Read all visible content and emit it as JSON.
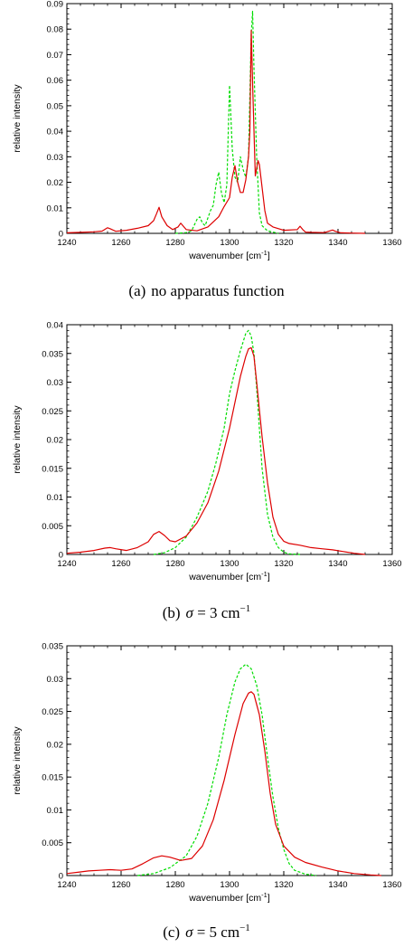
{
  "common": {
    "xlabel_main": "wavenumber [cm",
    "xlabel_sup": "-1",
    "xlabel_end": "]",
    "ylabel": "relative intensity"
  },
  "captions": [
    {
      "label": "(a)",
      "text": "no apparatus function"
    },
    {
      "label": "(b)",
      "sigma": "σ",
      "text": " = 3 cm",
      "sup": "−1"
    },
    {
      "label": "(c)",
      "sigma": "σ",
      "text": " = 5 cm",
      "sup": "−1"
    }
  ],
  "colors": {
    "red": "#dd0000",
    "green": "#00dd00"
  },
  "chart_data": [
    {
      "type": "line",
      "xlabel": "wavenumber [cm-1]",
      "ylabel": "relative intensity",
      "xlim": [
        1240,
        1360
      ],
      "ylim": [
        0,
        0.09
      ],
      "xticks": [
        1240,
        1260,
        1280,
        1300,
        1320,
        1340,
        1360
      ],
      "yticks": [
        0,
        0.01,
        0.02,
        0.03,
        0.04,
        0.05,
        0.06,
        0.07,
        0.08,
        0.09
      ],
      "ytick_labels": [
        "0",
        "0.01",
        "0.02",
        "0.03",
        "0.04",
        "0.05",
        "0.06",
        "0.07",
        "0.08",
        "0.09"
      ],
      "series": [
        {
          "color": "red",
          "style": "solid",
          "x": [
            1240,
            1245,
            1250,
            1253,
            1255,
            1256,
            1258,
            1262,
            1266,
            1270,
            1272,
            1273,
            1274,
            1275,
            1277,
            1279,
            1281,
            1282,
            1284,
            1288,
            1292,
            1296,
            1298,
            1300,
            1301,
            1302,
            1303,
            1304,
            1305,
            1306,
            1307,
            1307.5,
            1308,
            1308.6,
            1309.5,
            1310.5,
            1311,
            1312,
            1313,
            1314,
            1316,
            1320,
            1325,
            1326,
            1327,
            1328,
            1330,
            1335,
            1338,
            1339,
            1341,
            1345,
            1350
          ],
          "y": [
            0.0002,
            0.0004,
            0.0006,
            0.0009,
            0.0022,
            0.0018,
            0.0008,
            0.0012,
            0.002,
            0.003,
            0.005,
            0.0075,
            0.0102,
            0.0065,
            0.003,
            0.0015,
            0.0025,
            0.004,
            0.0015,
            0.001,
            0.0025,
            0.0065,
            0.0105,
            0.014,
            0.022,
            0.0265,
            0.02,
            0.016,
            0.016,
            0.021,
            0.03,
            0.04,
            0.0795,
            0.055,
            0.0225,
            0.0285,
            0.027,
            0.018,
            0.009,
            0.004,
            0.0025,
            0.0012,
            0.0015,
            0.0028,
            0.0015,
            0.0005,
            0.0004,
            0.0003,
            0.0013,
            0.0008,
            0.0002,
            0.0001,
            0.0
          ]
        },
        {
          "color": "green",
          "style": "dashed",
          "x": [
            1280,
            1284,
            1286,
            1288,
            1289,
            1290,
            1291,
            1292,
            1293,
            1294,
            1295,
            1296,
            1297,
            1298,
            1299,
            1300,
            1301,
            1302,
            1303,
            1304,
            1305,
            1306,
            1307,
            1308,
            1308.5,
            1309,
            1310,
            1311,
            1312,
            1314,
            1318
          ],
          "y": [
            0.0,
            0.0003,
            0.001,
            0.0055,
            0.0065,
            0.004,
            0.003,
            0.006,
            0.009,
            0.011,
            0.019,
            0.024,
            0.016,
            0.012,
            0.019,
            0.058,
            0.033,
            0.022,
            0.02,
            0.03,
            0.025,
            0.022,
            0.03,
            0.078,
            0.087,
            0.065,
            0.03,
            0.008,
            0.003,
            0.001,
            0.0
          ]
        }
      ]
    },
    {
      "type": "line",
      "xlabel": "wavenumber [cm-1]",
      "ylabel": "relative intensity",
      "xlim": [
        1240,
        1360
      ],
      "ylim": [
        0,
        0.04
      ],
      "xticks": [
        1240,
        1260,
        1280,
        1300,
        1320,
        1340,
        1360
      ],
      "yticks": [
        0,
        0.005,
        0.01,
        0.015,
        0.02,
        0.025,
        0.03,
        0.035,
        0.04
      ],
      "ytick_labels": [
        "0",
        "0.005",
        "0.01",
        "0.015",
        "0.02",
        "0.025",
        "0.03",
        "0.035",
        "0.04"
      ],
      "series": [
        {
          "color": "red",
          "style": "solid",
          "x": [
            1240,
            1245,
            1250,
            1254,
            1256,
            1258,
            1262,
            1266,
            1270,
            1272,
            1274,
            1276,
            1278,
            1280,
            1284,
            1288,
            1292,
            1296,
            1300,
            1302,
            1304,
            1306,
            1307,
            1308,
            1309,
            1310,
            1312,
            1314,
            1316,
            1318,
            1320,
            1322,
            1326,
            1330,
            1334,
            1338,
            1342,
            1346,
            1350
          ],
          "y": [
            0.0002,
            0.0004,
            0.0007,
            0.0011,
            0.0012,
            0.001,
            0.0007,
            0.0012,
            0.0022,
            0.0035,
            0.004,
            0.0033,
            0.0024,
            0.0022,
            0.0032,
            0.0055,
            0.009,
            0.0145,
            0.022,
            0.0265,
            0.031,
            0.0345,
            0.0358,
            0.036,
            0.0345,
            0.03,
            0.0205,
            0.0125,
            0.0065,
            0.0035,
            0.0023,
            0.0019,
            0.0016,
            0.0012,
            0.001,
            0.0008,
            0.0005,
            0.0002,
            0.0
          ]
        },
        {
          "color": "green",
          "style": "dashed",
          "x": [
            1272,
            1276,
            1280,
            1284,
            1288,
            1292,
            1295,
            1298,
            1300,
            1302,
            1304,
            1305,
            1306,
            1307,
            1308,
            1309,
            1310,
            1311,
            1312,
            1314,
            1316,
            1318,
            1320,
            1322,
            1326
          ],
          "y": [
            0.0,
            0.0003,
            0.0012,
            0.003,
            0.0065,
            0.011,
            0.016,
            0.022,
            0.028,
            0.032,
            0.0355,
            0.037,
            0.0385,
            0.039,
            0.038,
            0.035,
            0.029,
            0.022,
            0.015,
            0.007,
            0.003,
            0.0012,
            0.0004,
            0.0001,
            0.0
          ]
        }
      ]
    },
    {
      "type": "line",
      "xlabel": "wavenumber [cm-1]",
      "ylabel": "relative intensity",
      "xlim": [
        1240,
        1360
      ],
      "ylim": [
        0,
        0.035
      ],
      "xticks": [
        1240,
        1260,
        1280,
        1300,
        1320,
        1340,
        1360
      ],
      "yticks": [
        0,
        0.005,
        0.01,
        0.015,
        0.02,
        0.025,
        0.03,
        0.035
      ],
      "ytick_labels": [
        "0",
        "0.005",
        "0.01",
        "0.015",
        "0.02",
        "0.025",
        "0.03",
        "0.035"
      ],
      "series": [
        {
          "color": "red",
          "style": "solid",
          "x": [
            1240,
            1244,
            1248,
            1252,
            1256,
            1260,
            1264,
            1268,
            1272,
            1275,
            1278,
            1282,
            1286,
            1290,
            1294,
            1298,
            1302,
            1305,
            1307,
            1308,
            1309,
            1311,
            1313,
            1315,
            1317,
            1320,
            1324,
            1328,
            1334,
            1340,
            1346,
            1352,
            1356
          ],
          "y": [
            0.0003,
            0.0005,
            0.0007,
            0.0008,
            0.0009,
            0.0008,
            0.001,
            0.0018,
            0.0027,
            0.003,
            0.0028,
            0.0023,
            0.0026,
            0.0045,
            0.0085,
            0.0145,
            0.0215,
            0.0262,
            0.0278,
            0.028,
            0.0276,
            0.0245,
            0.019,
            0.0125,
            0.0078,
            0.0045,
            0.0028,
            0.002,
            0.0013,
            0.0007,
            0.0003,
            0.0001,
            0.0
          ]
        },
        {
          "color": "green",
          "style": "dashed",
          "x": [
            1266,
            1272,
            1278,
            1284,
            1288,
            1292,
            1296,
            1299,
            1302,
            1304,
            1306,
            1308,
            1310,
            1312,
            1314,
            1316,
            1318,
            1320,
            1322,
            1324,
            1328,
            1332
          ],
          "y": [
            0.0,
            0.0003,
            0.0012,
            0.003,
            0.006,
            0.011,
            0.018,
            0.0245,
            0.0295,
            0.0315,
            0.0322,
            0.0315,
            0.029,
            0.0245,
            0.018,
            0.012,
            0.0072,
            0.004,
            0.0018,
            0.0008,
            0.0002,
            0.0
          ]
        }
      ]
    }
  ]
}
